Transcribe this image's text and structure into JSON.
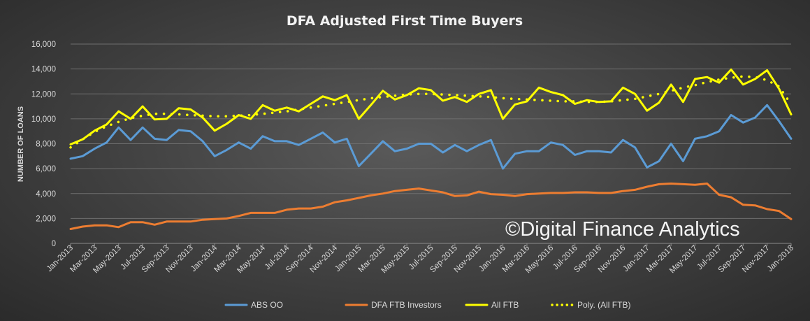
{
  "chart_data": {
    "type": "line",
    "title": "DFA Adjusted First Time Buyers",
    "xlabel": "",
    "ylabel": "NUMBER OF LOANS",
    "ylim": [
      0,
      16000
    ],
    "yticks": [
      0,
      2000,
      4000,
      6000,
      8000,
      10000,
      12000,
      14000,
      16000
    ],
    "ytick_labels": [
      "0",
      "2,000",
      "4,000",
      "6,000",
      "8,000",
      "10,000",
      "12,000",
      "14,000",
      "16,000"
    ],
    "x_tick_labels": [
      "Jan-2013",
      "Mar-2013",
      "May-2013",
      "Jul-2013",
      "Sep-2013",
      "Nov-2013",
      "Jan-2014",
      "Mar-2014",
      "May-2014",
      "Jul-2014",
      "Sep-2014",
      "Nov-2014",
      "Jan-2015",
      "Mar-2015",
      "May-2015",
      "Jul-2015",
      "Sep-2015",
      "Nov-2015",
      "Jan-2016",
      "Mar-2016",
      "May-2016",
      "Jul-2016",
      "Sep-2016",
      "Nov-2016",
      "Jan-2017",
      "Mar-2017",
      "May-2017",
      "Jul-2017",
      "Sep-2017",
      "Nov-2017",
      "Jan-2018"
    ],
    "n_points": 61,
    "grid": true,
    "legend_position": "bottom",
    "series": [
      {
        "name": "ABS OO",
        "color": "#5b9bd5",
        "style": "solid",
        "values": [
          6800,
          7000,
          7600,
          8100,
          9300,
          8300,
          9300,
          8400,
          8300,
          9100,
          9000,
          8200,
          7000,
          7500,
          8100,
          7600,
          8600,
          8200,
          8200,
          7900,
          8400,
          8900,
          8100,
          8400,
          6200,
          7200,
          8200,
          7400,
          7600,
          8000,
          8000,
          7300,
          7900,
          7400,
          7900,
          8300,
          6000,
          7200,
          7400,
          7400,
          8100,
          7900,
          7100,
          7400,
          7400,
          7300,
          8300,
          7700,
          6100,
          6600,
          8000,
          6600,
          8400,
          8600,
          9000,
          10300,
          9700,
          10100,
          11100,
          9800,
          8400
        ]
      },
      {
        "name": "DFA FTB Investors",
        "color": "#ed7d31",
        "style": "solid",
        "values": [
          1150,
          1350,
          1450,
          1450,
          1300,
          1700,
          1700,
          1500,
          1750,
          1750,
          1750,
          1900,
          1950,
          2000,
          2200,
          2450,
          2450,
          2450,
          2700,
          2800,
          2800,
          2950,
          3300,
          3450,
          3650,
          3850,
          4000,
          4200,
          4300,
          4400,
          4250,
          4100,
          3800,
          3850,
          4150,
          3950,
          3900,
          3800,
          3950,
          4000,
          4050,
          4050,
          4100,
          4100,
          4050,
          4050,
          4200,
          4300,
          4550,
          4750,
          4800,
          4750,
          4700,
          4800,
          3900,
          3700,
          3100,
          3050,
          2750,
          2600,
          1950
        ]
      },
      {
        "name": "All FTB",
        "color": "#ffff00",
        "style": "solid",
        "values": [
          7950,
          8350,
          9050,
          9550,
          10600,
          10000,
          11000,
          9950,
          10000,
          10850,
          10750,
          10100,
          9050,
          9600,
          10300,
          10000,
          11100,
          10650,
          10900,
          10600,
          11200,
          11800,
          11500,
          11900,
          10000,
          11100,
          12250,
          11550,
          11900,
          12450,
          12300,
          11450,
          11750,
          11350,
          12000,
          12300,
          10000,
          11150,
          11400,
          12500,
          12150,
          11900,
          11200,
          11500,
          11350,
          11400,
          12500,
          12000,
          10650,
          11300,
          12750,
          11350,
          13200,
          13350,
          12900,
          13950,
          12750,
          13200,
          13900,
          12400,
          10350
        ]
      },
      {
        "name": "Poly. (All FTB)",
        "color": "#ffff00",
        "style": "dotted",
        "values": [
          7700,
          8350,
          8950,
          9400,
          9750,
          10050,
          10250,
          10400,
          10400,
          10350,
          10300,
          10250,
          10200,
          10200,
          10250,
          10300,
          10400,
          10500,
          10600,
          10750,
          10900,
          11050,
          11200,
          11350,
          11500,
          11650,
          11750,
          11850,
          11950,
          12000,
          12000,
          11950,
          11900,
          11850,
          11800,
          11750,
          11650,
          11600,
          11550,
          11500,
          11450,
          11400,
          11400,
          11350,
          11350,
          11400,
          11500,
          11600,
          11800,
          12000,
          12250,
          12500,
          12700,
          12950,
          13150,
          13300,
          13400,
          13350,
          13100,
          12600,
          11150
        ]
      }
    ]
  },
  "watermark": "©Digital Finance Analytics"
}
